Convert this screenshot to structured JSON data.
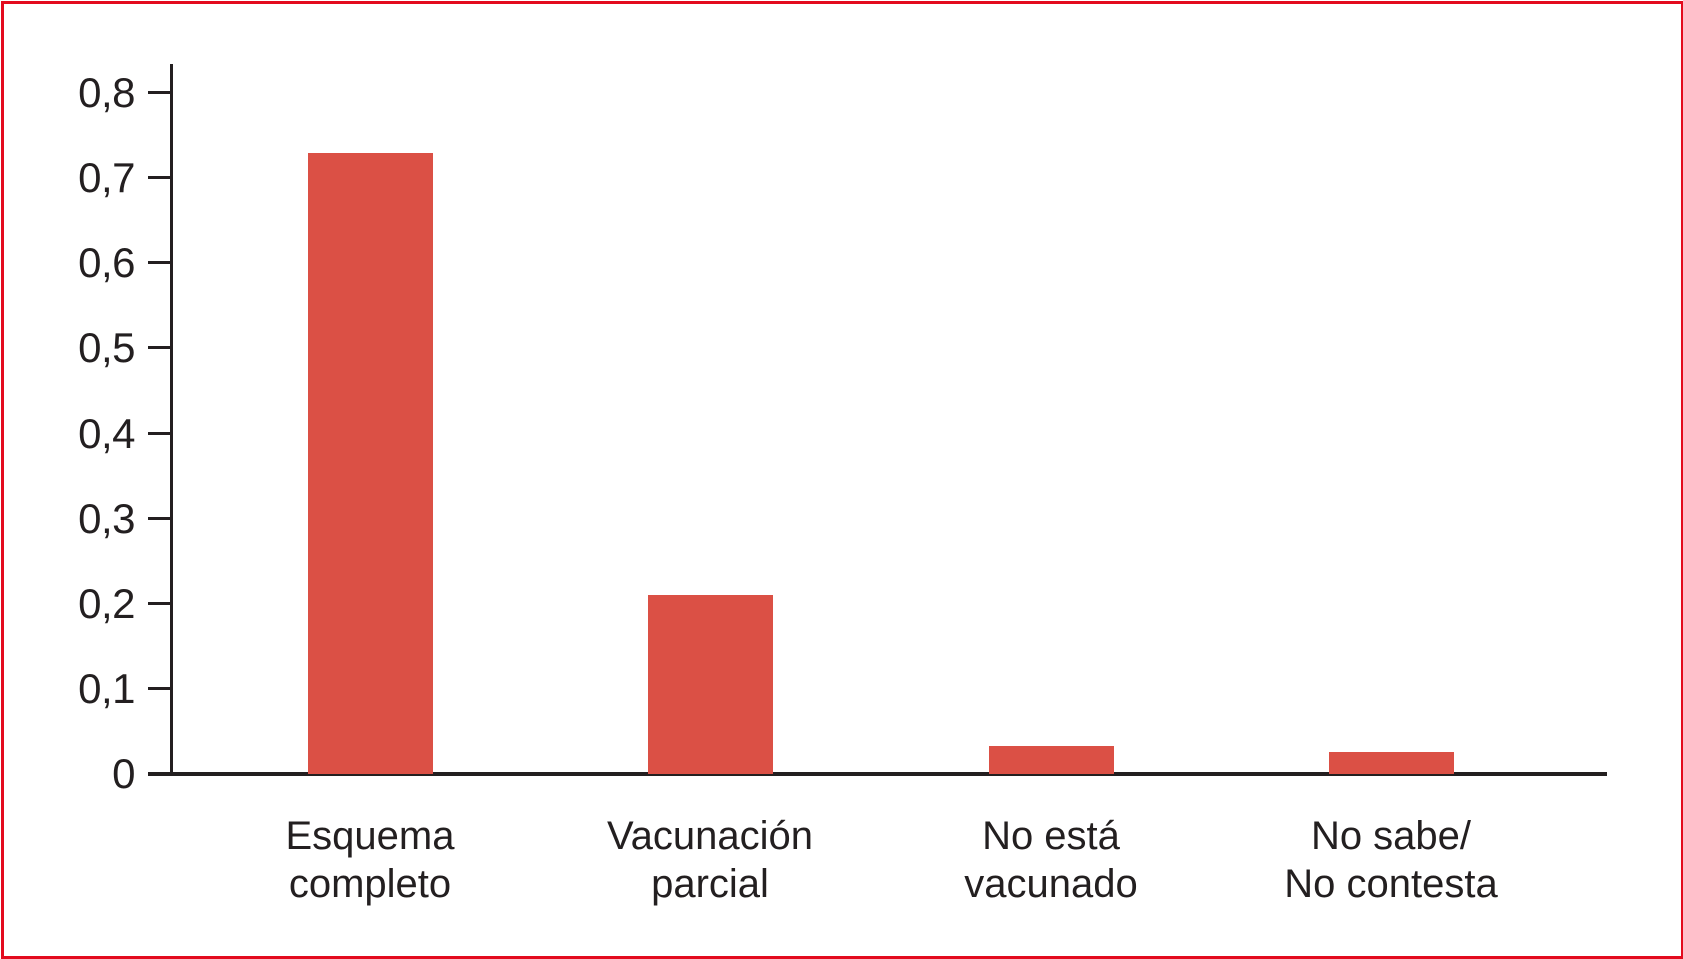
{
  "chart_data": {
    "type": "bar",
    "title": "",
    "xlabel": "",
    "ylabel": "",
    "categories": [
      "Esquema completo",
      "Vacunación parcial",
      "No está vacunado",
      "No sabe/ No contesta"
    ],
    "category_lines": [
      [
        "Esquema",
        "completo"
      ],
      [
        "Vacunación",
        "parcial"
      ],
      [
        "No está",
        "vacunado"
      ],
      [
        "No sabe/",
        "No contesta"
      ]
    ],
    "values": [
      0.73,
      0.21,
      0.033,
      0.026
    ],
    "ylim": [
      0,
      0.8
    ],
    "ytick_step": 0.1,
    "ytick_labels": [
      "0",
      "0,1",
      "0,2",
      "0,3",
      "0,4",
      "0,5",
      "0,6",
      "0,7",
      "0,8"
    ],
    "decimal_separator": ",",
    "grid": false,
    "legend": false,
    "colors": {
      "bar": "#db5045",
      "axis": "#231f20",
      "text": "#231f20",
      "frame_border": "#e30b1e",
      "background": "#ffffff"
    }
  }
}
